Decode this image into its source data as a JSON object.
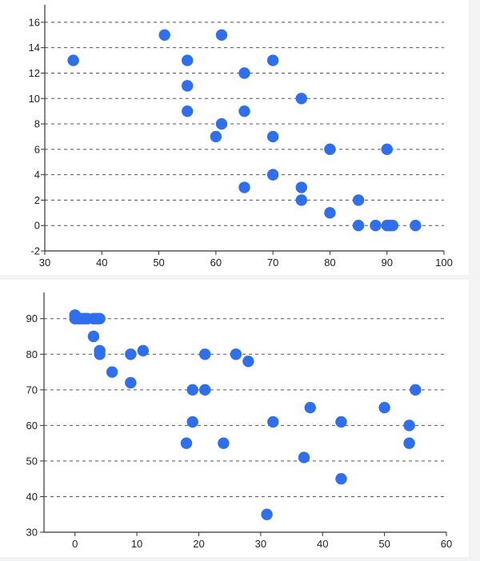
{
  "chart_data": [
    {
      "type": "scatter",
      "title": "",
      "xlabel": "",
      "ylabel": "",
      "xlim": [
        30,
        100
      ],
      "ylim": [
        -2,
        17
      ],
      "xticks": [
        "30",
        "40",
        "50",
        "60",
        "70",
        "80",
        "90",
        "100"
      ],
      "yticks": [
        "-2",
        "0",
        "2",
        "4",
        "6",
        "8",
        "10",
        "12",
        "14",
        "16"
      ],
      "grid": "horizontal dashed",
      "marker_color": "#2f6fec",
      "series": [
        {
          "points": [
            {
              "x": 35,
              "y": 13
            },
            {
              "x": 51,
              "y": 15
            },
            {
              "x": 61,
              "y": 15
            },
            {
              "x": 55,
              "y": 13
            },
            {
              "x": 70,
              "y": 13
            },
            {
              "x": 65,
              "y": 12
            },
            {
              "x": 55,
              "y": 11
            },
            {
              "x": 75,
              "y": 10
            },
            {
              "x": 55,
              "y": 9
            },
            {
              "x": 65,
              "y": 9
            },
            {
              "x": 61,
              "y": 8
            },
            {
              "x": 60,
              "y": 7
            },
            {
              "x": 70,
              "y": 7
            },
            {
              "x": 80,
              "y": 6
            },
            {
              "x": 90,
              "y": 6
            },
            {
              "x": 70,
              "y": 4
            },
            {
              "x": 65,
              "y": 3
            },
            {
              "x": 75,
              "y": 3
            },
            {
              "x": 75,
              "y": 2
            },
            {
              "x": 85,
              "y": 2
            },
            {
              "x": 80,
              "y": 1
            },
            {
              "x": 85,
              "y": 0
            },
            {
              "x": 88,
              "y": 0
            },
            {
              "x": 90,
              "y": 0
            },
            {
              "x": 90.5,
              "y": 0
            },
            {
              "x": 91,
              "y": 0
            },
            {
              "x": 95,
              "y": 0
            }
          ]
        }
      ]
    },
    {
      "type": "scatter",
      "title": "",
      "xlabel": "",
      "ylabel": "",
      "xlim": [
        -5,
        60
      ],
      "ylim": [
        30,
        96
      ],
      "xticks": [
        "0",
        "10",
        "20",
        "30",
        "40",
        "50",
        "60"
      ],
      "yticks": [
        "30",
        "40",
        "50",
        "60",
        "70",
        "80",
        "90"
      ],
      "grid": "horizontal dashed",
      "marker_color": "#2f6fec",
      "series": [
        {
          "points": [
            {
              "x": 0,
              "y": 91
            },
            {
              "x": 0,
              "y": 90
            },
            {
              "x": 0.5,
              "y": 90
            },
            {
              "x": 1,
              "y": 90
            },
            {
              "x": 1.5,
              "y": 90
            },
            {
              "x": 2,
              "y": 90
            },
            {
              "x": 3,
              "y": 90
            },
            {
              "x": 3.5,
              "y": 90
            },
            {
              "x": 4,
              "y": 90
            },
            {
              "x": 3,
              "y": 85
            },
            {
              "x": 4,
              "y": 81
            },
            {
              "x": 4,
              "y": 80
            },
            {
              "x": 6,
              "y": 75
            },
            {
              "x": 9,
              "y": 80
            },
            {
              "x": 11,
              "y": 81
            },
            {
              "x": 9,
              "y": 72
            },
            {
              "x": 19,
              "y": 70
            },
            {
              "x": 21,
              "y": 70
            },
            {
              "x": 21,
              "y": 80
            },
            {
              "x": 26,
              "y": 80
            },
            {
              "x": 28,
              "y": 78
            },
            {
              "x": 19,
              "y": 61
            },
            {
              "x": 18,
              "y": 55
            },
            {
              "x": 24,
              "y": 55
            },
            {
              "x": 32,
              "y": 61
            },
            {
              "x": 38,
              "y": 65
            },
            {
              "x": 37,
              "y": 51
            },
            {
              "x": 43,
              "y": 61
            },
            {
              "x": 43,
              "y": 45
            },
            {
              "x": 31,
              "y": 35
            },
            {
              "x": 50,
              "y": 65
            },
            {
              "x": 54,
              "y": 60
            },
            {
              "x": 54,
              "y": 55
            },
            {
              "x": 55,
              "y": 70
            }
          ]
        }
      ]
    }
  ]
}
